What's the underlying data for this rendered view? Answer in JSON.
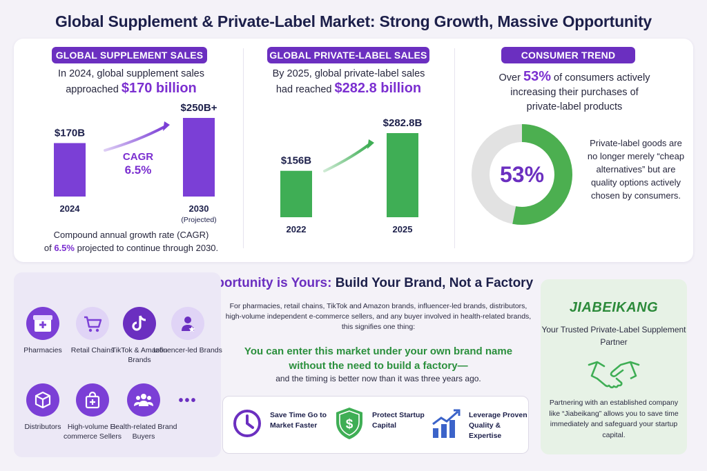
{
  "page_title": "Global Supplement & Private-Label Market: Strong Growth, Massive Opportunity",
  "panel_supplement": {
    "pill": "GLOBAL SUPPLEMENT SALES",
    "line1": "In 2024, global supplement sales",
    "line2_pre": "approached",
    "line2_value": "$170 billion",
    "cagr_label": "CAGR",
    "cagr_value": "6.5%",
    "foot1": "Compound annual growth rate (CAGR)",
    "foot2_pre": "of",
    "foot2_value": "6.5%",
    "foot2_post": "projected to continue through 2030."
  },
  "panel_private": {
    "pill": "GLOBAL PRIVATE-LABEL SALES",
    "line1": "By 2025, global private-label sales",
    "line2_pre": "had reached",
    "line2_value": "$282.8 billion"
  },
  "panel_consumer": {
    "pill": "CONSUMER TREND",
    "line1_pre": "Over",
    "line1_value": "53%",
    "line1_post": "of consumers actively",
    "line2": "increasing their purchases of",
    "line3": "private-label products",
    "donut_label": "53%",
    "desc": "Private-label goods are no longer merely “cheap alternatives” but are quality options actively chosen by consumers."
  },
  "chart_data": [
    {
      "type": "bar",
      "categories": [
        "2024",
        "2030"
      ],
      "category_notes": [
        "",
        "(Projected)"
      ],
      "values": [
        170,
        250
      ],
      "data_labels": [
        "$170B",
        "$250B+"
      ],
      "color": "#7b3fd6"
    },
    {
      "type": "bar",
      "categories": [
        "2022",
        "2025"
      ],
      "values": [
        156,
        282.8
      ],
      "data_labels": [
        "$156B",
        "$282.8B"
      ],
      "color": "#3fae55"
    },
    {
      "type": "pie",
      "categories": [
        "Increasing purchases",
        "Other"
      ],
      "values": [
        53,
        47
      ],
      "colors": [
        "#4caf50",
        "#e2e2e2"
      ]
    }
  ],
  "opportunity": {
    "title_hl": "The Opportunity is Yours:",
    "title_rest": "Build Your Brand, Not a Factory",
    "intro": "For pharmacies, retail chains, TikTok and Amazon brands, influencer-led brands, distributors, high-volume independent e-commerce sellers, and any buyer involved in health-related brands, this signifies one thing:",
    "highlight1": "You can enter this market under your own brand name",
    "highlight2": "without the need to build a factory—",
    "sub": "and the timing is better now than it was three years ago."
  },
  "audiences": [
    {
      "label": "Pharmacies",
      "icon": "pharmacy-icon"
    },
    {
      "label": "Retail Chains",
      "icon": "cart-icon"
    },
    {
      "label": "TikTok & Amazon Brands",
      "icon": "tiktok-icon"
    },
    {
      "label": "Influencer-led Brands",
      "icon": "influencer-icon"
    },
    {
      "label": "Distributors",
      "icon": "box-icon"
    },
    {
      "label": "High-volume E-commerce Sellers",
      "icon": "shopping-bag-icon"
    },
    {
      "label": "Health-related Brand Buyers",
      "icon": "group-icon"
    },
    {
      "label": "•••",
      "icon": "more-icon"
    }
  ],
  "benefits": [
    {
      "label": "Save Time Go to Market Faster",
      "icon": "clock-icon"
    },
    {
      "label": "Protect Startup Capital",
      "icon": "shield-dollar-icon"
    },
    {
      "label": "Leverage Proven Quality & Expertise",
      "icon": "growth-chart-icon"
    }
  ],
  "partner": {
    "brand": "JIABEIKANG",
    "tagline": "Your Trusted Private-Label Supplement Partner",
    "body": "Partnering with an established company like “Jiabeikang” allows you to save time immediately and safeguard your startup capital."
  },
  "colors": {
    "purple": "#6b2fc0",
    "green": "#3fae55",
    "navy": "#1c1f4a"
  }
}
